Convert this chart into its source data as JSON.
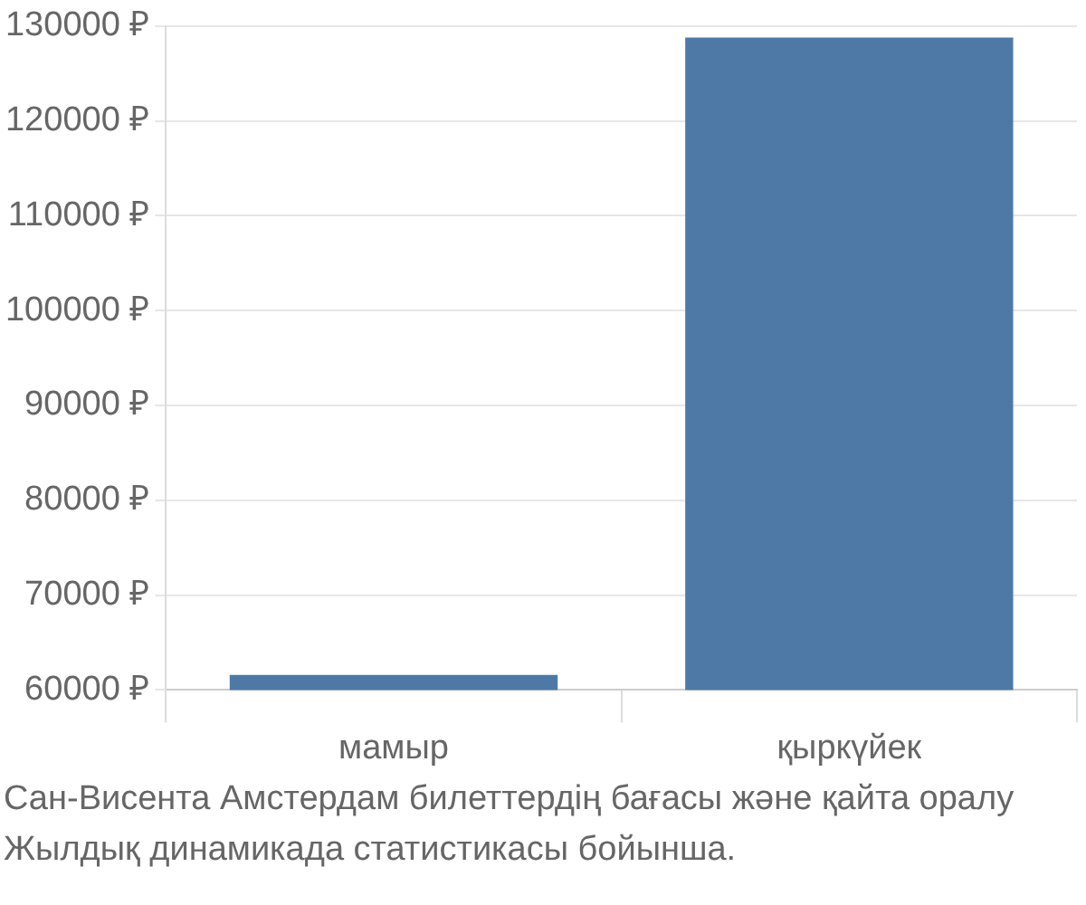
{
  "chart_data": {
    "type": "bar",
    "categories": [
      "мамыр",
      "қыркүйек"
    ],
    "values": [
      61600,
      128800
    ],
    "color": "#4e79a7",
    "ylim": [
      60000,
      130000
    ],
    "yticks": [
      {
        "value": 60000,
        "label": "60000 ₽"
      },
      {
        "value": 70000,
        "label": "70000 ₽"
      },
      {
        "value": 80000,
        "label": "80000 ₽"
      },
      {
        "value": 90000,
        "label": "90000 ₽"
      },
      {
        "value": 100000,
        "label": "100000 ₽"
      },
      {
        "value": 110000,
        "label": "110000 ₽"
      },
      {
        "value": 120000,
        "label": "120000 ₽"
      },
      {
        "value": 130000,
        "label": "130000 ₽"
      }
    ],
    "grid": true,
    "legend": false,
    "annotations": [
      "Сан-Висента Амстердам билеттердің бағасы және қайта оралу",
      "Жылдық динамикада статистикасы бойынша."
    ]
  }
}
